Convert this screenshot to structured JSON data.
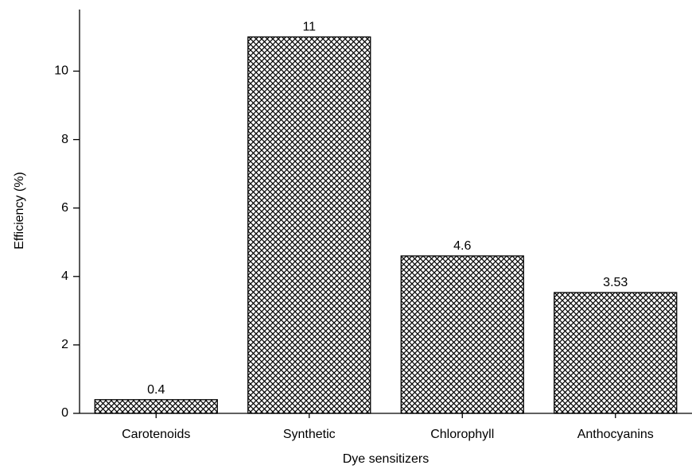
{
  "chart_data": {
    "type": "bar",
    "xlabel": "Dye sensitizers",
    "ylabel": "Efficiency (%)",
    "categories": [
      "Carotenoids",
      "Synthetic",
      "Chlorophyll",
      "Anthocyanins"
    ],
    "values": [
      0.4,
      11,
      4.6,
      3.53
    ],
    "color": "#000000",
    "ylim": [
      0,
      11.8
    ],
    "yticks": [
      0,
      2,
      4,
      6,
      8,
      10
    ],
    "grid": false
  }
}
